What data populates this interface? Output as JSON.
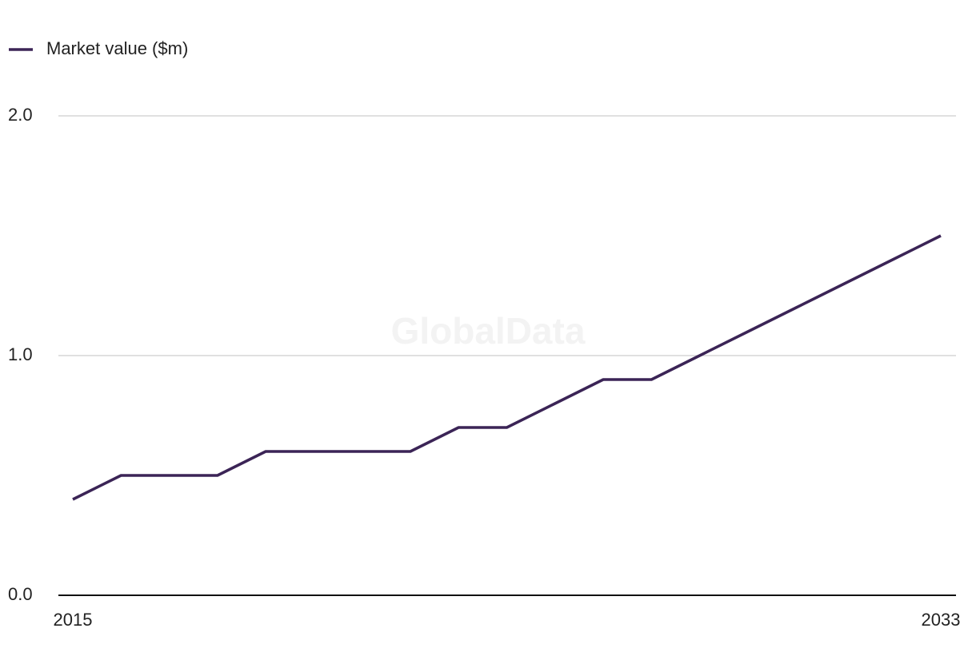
{
  "chart_data": {
    "type": "line",
    "watermark": "GlobalData",
    "x": [
      2015,
      2016,
      2017,
      2018,
      2019,
      2020,
      2021,
      2022,
      2023,
      2024,
      2025,
      2026,
      2027,
      2028,
      2029,
      2030,
      2031,
      2032,
      2033
    ],
    "series": [
      {
        "name": "Market value ($m)",
        "color": "#3b2456",
        "values": [
          0.4,
          0.5,
          0.5,
          0.5,
          0.6,
          0.6,
          0.6,
          0.6,
          0.7,
          0.7,
          0.8,
          0.9,
          0.9,
          1.0,
          1.1,
          1.2,
          1.3,
          1.4,
          1.5
        ]
      }
    ],
    "xlim": [
      2015,
      2033
    ],
    "xticks": [
      2015,
      2033
    ],
    "ylim": [
      0,
      2
    ],
    "yticks": [
      {
        "value": 0,
        "label": "0.0"
      },
      {
        "value": 1,
        "label": "1.0"
      },
      {
        "value": 2,
        "label": "2.0"
      }
    ],
    "grid": true,
    "legend": "top-left"
  }
}
